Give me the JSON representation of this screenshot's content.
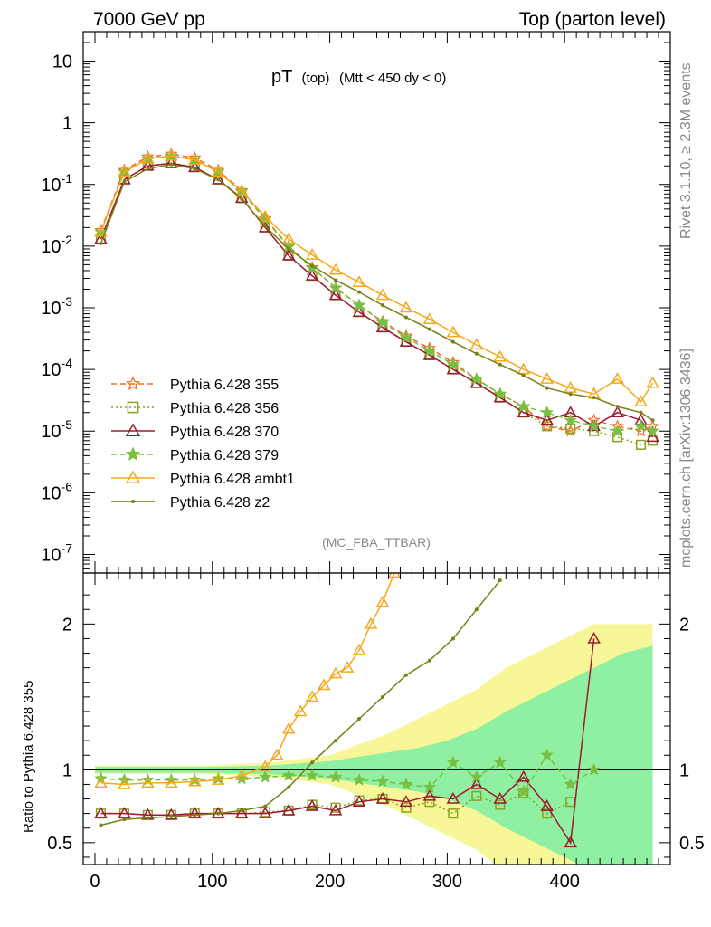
{
  "header": {
    "left": "7000 GeV pp",
    "right": "Top (parton level)"
  },
  "side": {
    "rivet": "Rivet 3.1.10, ≥ 2.3M events",
    "mcplots": "mcplots.cern.ch [arXiv:1306.3436]"
  },
  "chart_data": [
    {
      "type": "line",
      "title_main": "pT",
      "title_sub": "(top)",
      "title_cut": "(Mtt < 450 dy < 0)",
      "watermark": "(MC_FBA_TTBAR)",
      "yscale": "log",
      "ylim": [
        5e-08,
        30
      ],
      "xlim": [
        -10,
        490
      ],
      "ytick_labels": [
        "10",
        "1",
        "10^-1",
        "10^-2",
        "10^-3",
        "10^-4",
        "10^-5",
        "10^-6",
        "10^-7"
      ],
      "legend_placement": "lower-left",
      "series": [
        {
          "name": "Pythia 6.428 355",
          "color": "#f26b21",
          "marker": "star-open",
          "dash": "6,4",
          "x": [
            5,
            25,
            45,
            65,
            85,
            105,
            125,
            145,
            165,
            185,
            205,
            225,
            245,
            265,
            285,
            305,
            325,
            345,
            365,
            385,
            405,
            425,
            445,
            465,
            475
          ],
          "y": [
            0.018,
            0.17,
            0.28,
            0.31,
            0.27,
            0.17,
            0.08,
            0.028,
            0.01,
            0.0045,
            0.0021,
            0.0011,
            0.0006,
            0.00035,
            0.00022,
            0.00013,
            7e-05,
            4e-05,
            2.5e-05,
            1.2e-05,
            1e-05,
            1.5e-05,
            1.2e-05,
            1e-05,
            1.2e-05
          ]
        },
        {
          "name": "Pythia 6.428 356",
          "color": "#8aa31f",
          "marker": "square-open",
          "dash": "2,3",
          "x": [
            5,
            25,
            45,
            65,
            85,
            105,
            125,
            145,
            165,
            185,
            205,
            225,
            245,
            265,
            285,
            305,
            325,
            345,
            365,
            385,
            405,
            425,
            445,
            465,
            475
          ],
          "y": [
            0.013,
            0.12,
            0.2,
            0.22,
            0.19,
            0.12,
            0.06,
            0.02,
            0.007,
            0.0033,
            0.0016,
            0.00085,
            0.00048,
            0.00028,
            0.00017,
            0.0001,
            6e-05,
            3.5e-05,
            2e-05,
            1.2e-05,
            1.1e-05,
            1e-05,
            8e-06,
            6e-06,
            7e-06
          ]
        },
        {
          "name": "Pythia 6.428 370",
          "color": "#9b1b30",
          "marker": "triangle-open",
          "dash": "",
          "x": [
            5,
            25,
            45,
            65,
            85,
            105,
            125,
            145,
            165,
            185,
            205,
            225,
            245,
            265,
            285,
            305,
            325,
            345,
            365,
            385,
            405,
            425,
            445,
            465,
            475
          ],
          "y": [
            0.013,
            0.12,
            0.2,
            0.22,
            0.19,
            0.12,
            0.06,
            0.02,
            0.007,
            0.0033,
            0.0016,
            0.00085,
            0.00048,
            0.00028,
            0.00017,
            0.0001,
            6e-05,
            3.5e-05,
            2e-05,
            1.5e-05,
            2e-05,
            1.2e-05,
            2e-05,
            1.5e-05,
            8e-06
          ]
        },
        {
          "name": "Pythia 6.428 379",
          "color": "#77c043",
          "marker": "star-filled",
          "dash": "6,4",
          "x": [
            5,
            25,
            45,
            65,
            85,
            105,
            125,
            145,
            165,
            185,
            205,
            225,
            245,
            265,
            285,
            305,
            325,
            345,
            365,
            385,
            405,
            425,
            445,
            465,
            475
          ],
          "y": [
            0.017,
            0.16,
            0.26,
            0.29,
            0.25,
            0.16,
            0.076,
            0.027,
            0.0098,
            0.0044,
            0.0021,
            0.0011,
            0.00058,
            0.00033,
            0.0002,
            0.00012,
            7e-05,
            4e-05,
            2.5e-05,
            2e-05,
            1.5e-05,
            1.2e-05,
            1e-05,
            1.2e-05,
            1e-05
          ]
        },
        {
          "name": "Pythia 6.428 ambt1",
          "color": "#f5a81c",
          "marker": "triangle-open",
          "dash": "",
          "x": [
            5,
            25,
            45,
            65,
            85,
            105,
            125,
            145,
            165,
            185,
            205,
            225,
            245,
            265,
            285,
            305,
            325,
            345,
            365,
            385,
            405,
            425,
            445,
            465,
            475
          ],
          "y": [
            0.017,
            0.16,
            0.26,
            0.29,
            0.25,
            0.16,
            0.078,
            0.03,
            0.013,
            0.0072,
            0.0041,
            0.0026,
            0.0016,
            0.001,
            0.00065,
            0.0004,
            0.00025,
            0.00016,
            0.0001,
            7e-05,
            5e-05,
            4e-05,
            7e-05,
            3e-05,
            6e-05
          ]
        },
        {
          "name": "Pythia 6.428 z2",
          "color": "#7a7f16",
          "marker": "dot",
          "dash": "",
          "x": [
            5,
            25,
            45,
            65,
            85,
            105,
            125,
            145,
            165,
            185,
            205,
            225,
            245,
            265,
            285,
            305,
            325,
            345,
            365,
            385,
            405,
            425,
            445,
            465,
            475
          ],
          "y": [
            0.011,
            0.11,
            0.18,
            0.21,
            0.18,
            0.12,
            0.058,
            0.021,
            0.009,
            0.0048,
            0.0028,
            0.0018,
            0.0011,
            0.0007,
            0.00045,
            0.00028,
            0.00018,
            0.00012,
            8e-05,
            5e-05,
            4e-05,
            3.5e-05,
            2.5e-05,
            2e-05,
            1.5e-05
          ]
        }
      ]
    },
    {
      "type": "line",
      "ylabel": "Ratio to Pythia 6.428 355",
      "ylim": [
        0.35,
        2.35
      ],
      "xlim": [
        -10,
        490
      ],
      "yticks": [
        0.5,
        1,
        2
      ],
      "ytick_labels": [
        "0.5",
        "1",
        "2"
      ],
      "xticks": [
        0,
        100,
        200,
        300,
        400
      ],
      "xtick_labels": [
        "0",
        "100",
        "200",
        "300",
        "400"
      ],
      "bands": {
        "x": [
          0,
          50,
          100,
          150,
          200,
          250,
          275,
          300,
          325,
          350,
          375,
          400,
          425,
          450,
          475
        ],
        "inner_half": [
          0.02,
          0.02,
          0.02,
          0.03,
          0.06,
          0.12,
          0.15,
          0.2,
          0.28,
          0.4,
          0.5,
          0.6,
          0.7,
          0.8,
          0.85
        ],
        "outer_half": [
          0.03,
          0.03,
          0.03,
          0.05,
          0.1,
          0.25,
          0.35,
          0.45,
          0.55,
          0.7,
          0.8,
          0.9,
          1.0,
          1.0,
          1.0
        ]
      },
      "series": [
        {
          "name": "Pythia 6.428 356",
          "color": "#8aa31f",
          "marker": "square-open",
          "dash": "2,3",
          "x": [
            5,
            25,
            45,
            65,
            85,
            105,
            125,
            145,
            165,
            185,
            205,
            225,
            245,
            265,
            285,
            305,
            325,
            345,
            365,
            385,
            405
          ],
          "y": [
            0.7,
            0.7,
            0.69,
            0.69,
            0.7,
            0.7,
            0.7,
            0.71,
            0.72,
            0.76,
            0.74,
            0.79,
            0.8,
            0.74,
            0.78,
            0.7,
            0.82,
            0.76,
            0.84,
            0.7,
            0.78
          ]
        },
        {
          "name": "Pythia 6.428 370",
          "color": "#9b1b30",
          "marker": "triangle-open",
          "dash": "",
          "x": [
            5,
            25,
            45,
            65,
            85,
            105,
            125,
            145,
            165,
            185,
            205,
            225,
            245,
            265,
            285,
            305,
            325,
            345,
            365,
            385,
            405,
            425
          ],
          "y": [
            0.7,
            0.7,
            0.69,
            0.69,
            0.7,
            0.7,
            0.7,
            0.7,
            0.72,
            0.75,
            0.72,
            0.78,
            0.8,
            0.78,
            0.82,
            0.8,
            0.9,
            0.8,
            0.95,
            0.75,
            0.5,
            1.9
          ]
        },
        {
          "name": "Pythia 6.428 379",
          "color": "#77c043",
          "marker": "star-filled",
          "dash": "6,4",
          "x": [
            5,
            25,
            45,
            65,
            85,
            105,
            125,
            145,
            165,
            185,
            205,
            225,
            245,
            265,
            285,
            305,
            325,
            345,
            365,
            385,
            405,
            425
          ],
          "y": [
            0.94,
            0.93,
            0.93,
            0.93,
            0.93,
            0.94,
            0.94,
            0.95,
            0.96,
            0.96,
            0.95,
            0.93,
            0.92,
            0.9,
            0.88,
            1.05,
            0.95,
            1.05,
            0.85,
            1.1,
            0.9,
            1.0
          ]
        },
        {
          "name": "Pythia 6.428 ambt1",
          "color": "#f5a81c",
          "marker": "triangle-open",
          "dash": "",
          "x": [
            5,
            25,
            45,
            65,
            85,
            105,
            125,
            145,
            155,
            165,
            175,
            185,
            195,
            205,
            215,
            225,
            235,
            245,
            255
          ],
          "y": [
            0.91,
            0.9,
            0.91,
            0.91,
            0.92,
            0.93,
            0.96,
            1.02,
            1.1,
            1.28,
            1.4,
            1.5,
            1.58,
            1.66,
            1.7,
            1.82,
            2.0,
            2.15,
            2.35
          ]
        },
        {
          "name": "Pythia 6.428 z2",
          "color": "#7a7f16",
          "marker": "dot",
          "dash": "",
          "x": [
            5,
            25,
            45,
            65,
            85,
            105,
            125,
            145,
            165,
            185,
            205,
            225,
            245,
            265,
            285,
            305,
            325,
            345
          ],
          "y": [
            0.62,
            0.66,
            0.67,
            0.68,
            0.69,
            0.7,
            0.72,
            0.75,
            0.88,
            1.05,
            1.2,
            1.35,
            1.5,
            1.65,
            1.75,
            1.9,
            2.1,
            2.3
          ]
        }
      ]
    }
  ]
}
